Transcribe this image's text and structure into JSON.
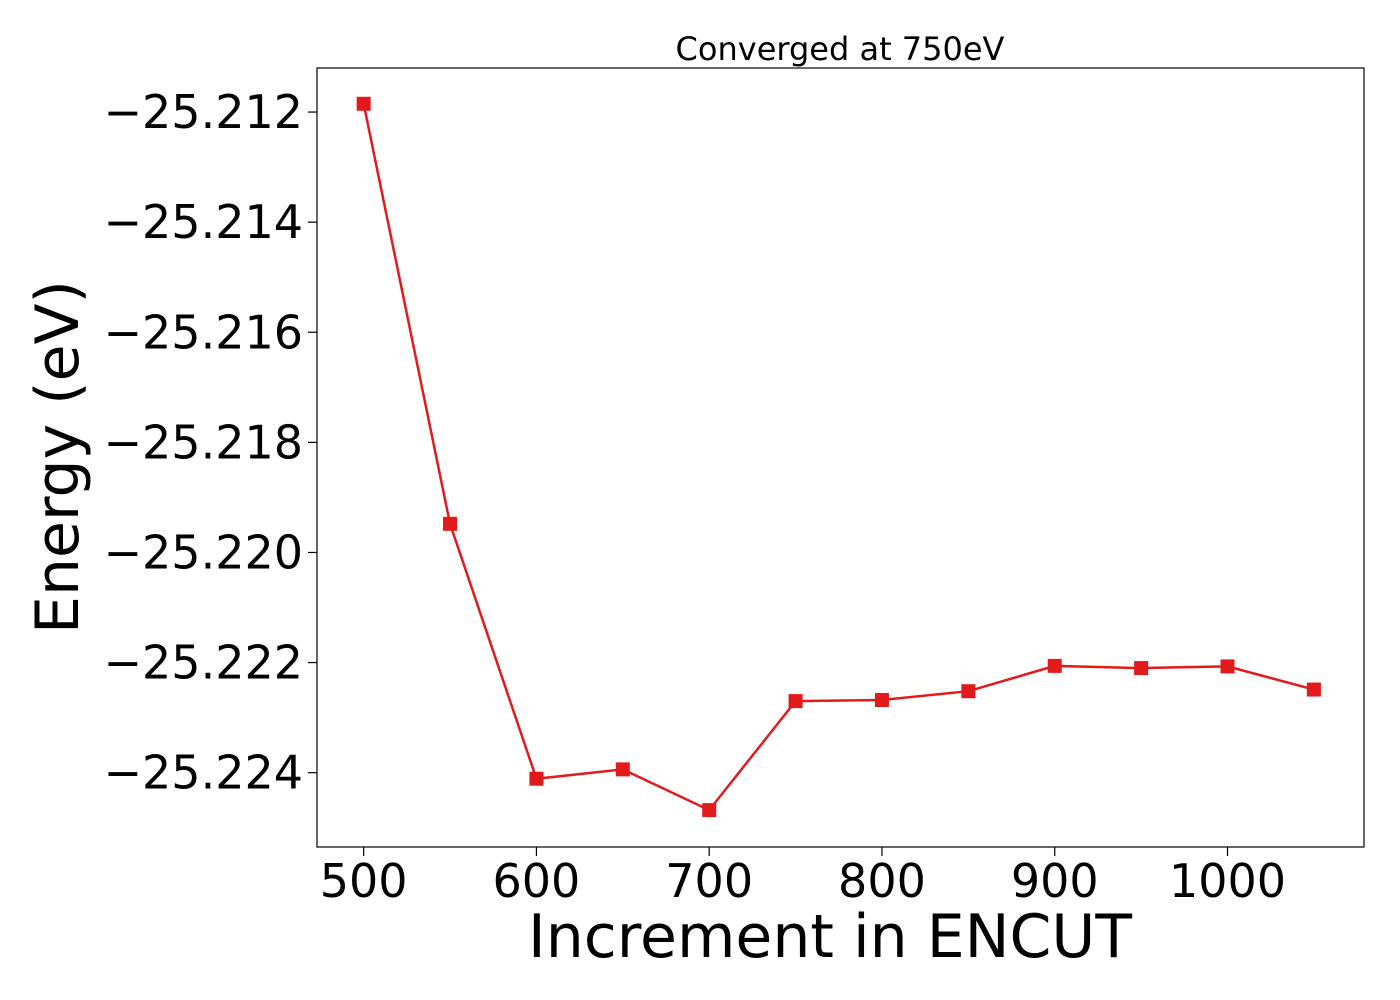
{
  "chart_data": {
    "type": "line",
    "title": "Converged at 750eV",
    "xlabel": "Increment in ENCUT",
    "ylabel": "Energy (eV)",
    "xlim": [
      473,
      1079
    ],
    "ylim": [
      -25.22535,
      -25.2112
    ],
    "x_ticks": [
      500,
      600,
      700,
      800,
      900,
      1000
    ],
    "x_tick_labels": [
      "500",
      "600",
      "700",
      "800",
      "900",
      "1000"
    ],
    "y_ticks": [
      -25.212,
      -25.214,
      -25.216,
      -25.218,
      -25.22,
      -25.222,
      -25.224
    ],
    "y_tick_labels": [
      "−25.212",
      "−25.214",
      "−25.216",
      "−25.218",
      "−25.220",
      "−25.222",
      "−25.224"
    ],
    "grid": false,
    "series": [
      {
        "color": "#e31a1c",
        "marker": "square",
        "x": [
          500,
          550,
          600,
          650,
          700,
          750,
          800,
          850,
          900,
          950,
          1000,
          1050
        ],
        "y": [
          -25.21185,
          -25.21948,
          -25.22411,
          -25.22394,
          -25.22468,
          -25.2227,
          -25.22268,
          -25.22252,
          -25.22206,
          -25.2221,
          -25.22207,
          -25.22249
        ]
      }
    ]
  }
}
